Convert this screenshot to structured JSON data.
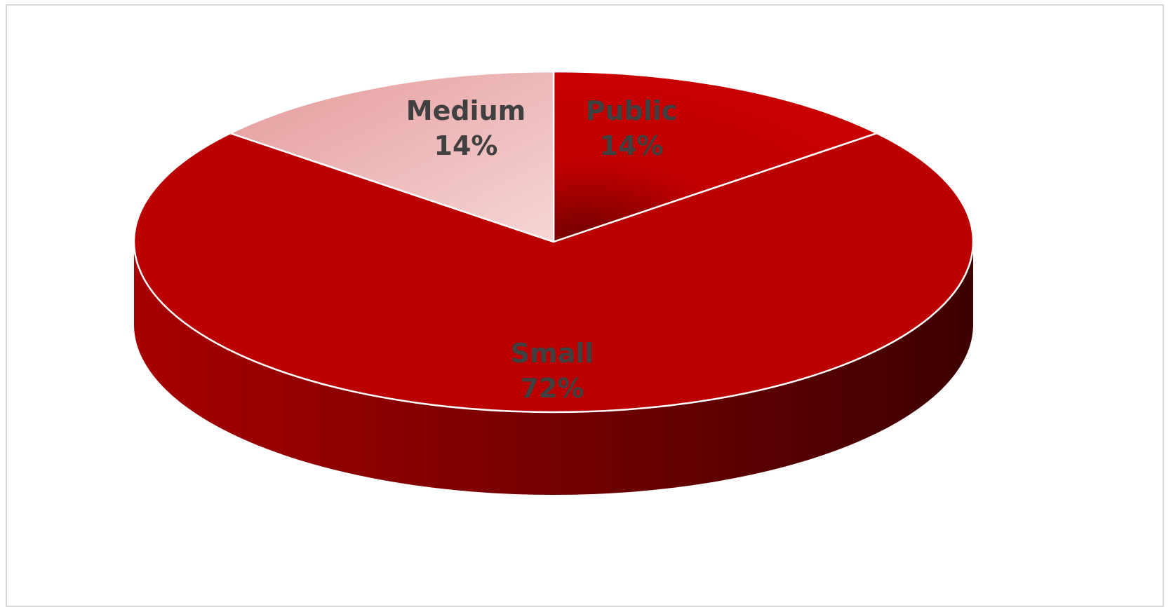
{
  "chart_data": {
    "type": "pie",
    "title": "",
    "style": "3d",
    "slices": [
      {
        "label": "Public",
        "value": 14,
        "display": "14%",
        "color": "#c00000"
      },
      {
        "label": "Small",
        "value": 72,
        "display": "72%",
        "color": "#bb0000"
      },
      {
        "label": "Medium",
        "value": 14,
        "display": "14%",
        "color": "#eda9a9"
      }
    ],
    "label_color": "#404040",
    "legend": "none"
  }
}
